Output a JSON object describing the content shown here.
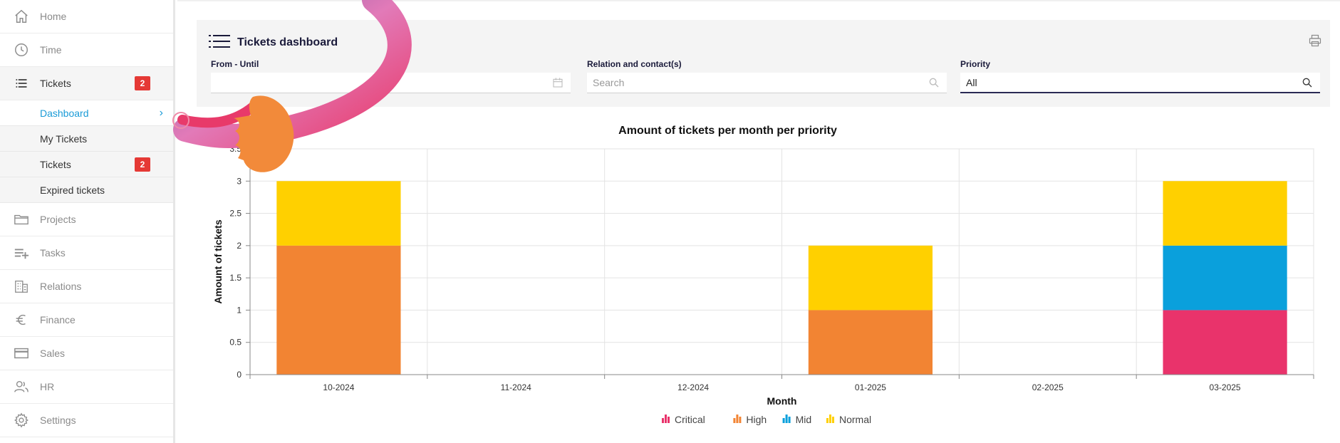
{
  "sidebar": {
    "items": [
      {
        "label": "Home",
        "icon": "home-icon"
      },
      {
        "label": "Time",
        "icon": "clock-icon"
      },
      {
        "label": "Tickets",
        "icon": "list-icon",
        "badge": "2"
      },
      {
        "label": "Projects",
        "icon": "folder-icon"
      },
      {
        "label": "Tasks",
        "icon": "playlist-add-icon"
      },
      {
        "label": "Relations",
        "icon": "building-icon"
      },
      {
        "label": "Finance",
        "icon": "euro-icon"
      },
      {
        "label": "Sales",
        "icon": "card-icon"
      },
      {
        "label": "HR",
        "icon": "users-icon"
      },
      {
        "label": "Settings",
        "icon": "gear-icon"
      }
    ],
    "sub_items": [
      {
        "label": "Dashboard"
      },
      {
        "label": "My Tickets"
      },
      {
        "label": "Tickets",
        "badge": "2"
      },
      {
        "label": "Expired tickets"
      }
    ]
  },
  "header": {
    "title": "Tickets dashboard"
  },
  "filters": {
    "from_until_label": "From - Until",
    "from_until_value": "",
    "relation_label": "Relation and contact(s)",
    "relation_placeholder": "Search",
    "priority_label": "Priority",
    "priority_value": "All"
  },
  "chart_data": {
    "type": "bar",
    "stacked": true,
    "title": "Amount of tickets per month per priority",
    "xlabel": "Month",
    "ylabel": "Amount of tickets",
    "ylim": [
      0,
      3.5
    ],
    "yticks": [
      "0",
      "0.5",
      "1",
      "1.5",
      "2",
      "2.5",
      "3",
      "3.5"
    ],
    "categories": [
      "10-2024",
      "11-2024",
      "12-2024",
      "01-2025",
      "02-2025",
      "03-2025"
    ],
    "series": [
      {
        "name": "Critical",
        "color": "#e9336b",
        "values": [
          0,
          0,
          0,
          0,
          0,
          1
        ]
      },
      {
        "name": "High",
        "color": "#f28433",
        "values": [
          2,
          0,
          0,
          1,
          0,
          0
        ]
      },
      {
        "name": "Mid",
        "color": "#0aa0dc",
        "values": [
          0,
          0,
          0,
          0,
          0,
          1
        ]
      },
      {
        "name": "Normal",
        "color": "#ffd000",
        "values": [
          1,
          0,
          0,
          1,
          0,
          1
        ]
      }
    ],
    "grid": true,
    "legend": "bottom"
  }
}
